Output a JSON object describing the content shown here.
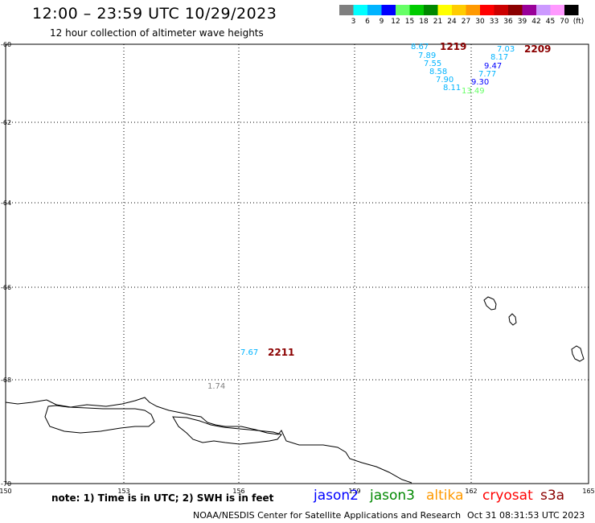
{
  "header": {
    "title": "12:00 – 23:59 UTC 10/29/2023",
    "subtitle": "12 hour collection of altimeter wave heights"
  },
  "color_scale": {
    "colors": [
      "#7f7f7f",
      "#00ffff",
      "#00b4ff",
      "#0000ff",
      "#66ff66",
      "#00cc00",
      "#008800",
      "#ffff00",
      "#ffcc00",
      "#ff9900",
      "#ff0000",
      "#cc0000",
      "#8b0000",
      "#990099",
      "#cc99ff",
      "#ff99ff",
      "#000000"
    ],
    "labels": [
      "3",
      "6",
      "9",
      "12",
      "15",
      "18",
      "21",
      "24",
      "27",
      "30",
      "33",
      "36",
      "39",
      "42",
      "45",
      "70",
      "(ft)"
    ]
  },
  "axes": {
    "lat_labels": [
      "-60",
      "-62",
      "-64",
      "-66",
      "-68",
      "-70"
    ],
    "lon_labels": [
      "150",
      "153",
      "156",
      "159",
      "162",
      "165"
    ]
  },
  "observations": [
    {
      "text": "8.67",
      "color": "#00b4ff"
    },
    {
      "text": "7.89",
      "color": "#00b4ff"
    },
    {
      "text": "7.55",
      "color": "#00b4ff"
    },
    {
      "text": "8.58",
      "color": "#00b4ff"
    },
    {
      "text": "7.90",
      "color": "#00b4ff"
    },
    {
      "text": "8.11",
      "color": "#00b4ff"
    },
    {
      "text": "13.49",
      "color": "#66ff66"
    },
    {
      "text": "7.03",
      "color": "#00b4ff"
    },
    {
      "text": "8.17",
      "color": "#00b4ff"
    },
    {
      "text": "9.47",
      "color": "#0000ff"
    },
    {
      "text": "7.77",
      "color": "#00b4ff"
    },
    {
      "text": "9.30",
      "color": "#0000ff"
    },
    {
      "text": "7.67",
      "color": "#00b4ff"
    },
    {
      "text": "1.74",
      "color": "#7f7f7f"
    }
  ],
  "track_times": [
    {
      "text": "1219",
      "color": "#8b0000"
    },
    {
      "text": "2209",
      "color": "#8b0000"
    },
    {
      "text": "2211",
      "color": "#8b0000"
    }
  ],
  "footer": {
    "note": "note: 1) Time is in UTC; 2) SWH is in feet",
    "satellites": [
      {
        "name": "jason2",
        "color": "#0000ff"
      },
      {
        "name": "jason3",
        "color": "#008800"
      },
      {
        "name": "altika",
        "color": "#ff9900"
      },
      {
        "name": "cryosat",
        "color": "#ff0000"
      },
      {
        "name": "s3a",
        "color": "#8b0000"
      }
    ],
    "credit": "NOAA/NESDIS Center for Satellite Applications and Research",
    "timestamp": "Oct 31 08:31:53 UTC 2023"
  }
}
